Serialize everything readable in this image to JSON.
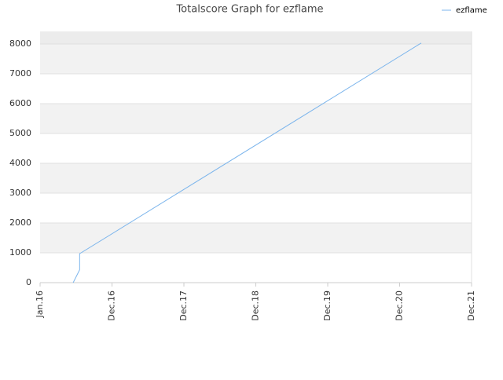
{
  "chart_data": {
    "type": "line",
    "title": "Totalscore Graph for ezflame",
    "x": [
      0.46,
      0.55,
      0.55,
      5.3
    ],
    "series": [
      {
        "name": "ezflame",
        "color": "#7cb5ec",
        "values": [
          0,
          430,
          970,
          8030
        ]
      }
    ],
    "xlim": [
      0,
      6
    ],
    "xticks": [
      {
        "value": 0,
        "label": "Jan.16"
      },
      {
        "value": 1,
        "label": "Dec.16"
      },
      {
        "value": 2,
        "label": "Dec.17"
      },
      {
        "value": 3,
        "label": "Dec.18"
      },
      {
        "value": 4,
        "label": "Dec.19"
      },
      {
        "value": 5,
        "label": "Dec.20"
      },
      {
        "value": 6,
        "label": "Dec.21"
      }
    ],
    "ylim": [
      0,
      8420
    ],
    "yticks": [
      0,
      1000,
      2000,
      3000,
      4000,
      5000,
      6000,
      7000,
      8000
    ],
    "grid": true,
    "legend": "top-right"
  }
}
